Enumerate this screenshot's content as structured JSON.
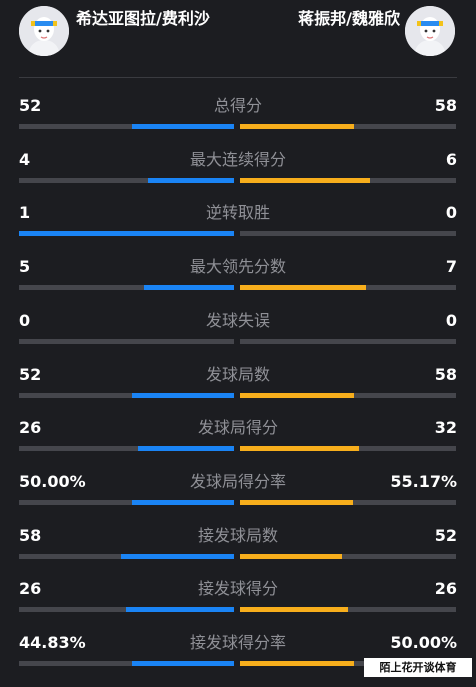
{
  "header": {
    "left_team": "希达亚图拉/费利沙",
    "right_team": "蒋振邦/魏雅欣",
    "left_avatar_icon": "user-avatar-icon",
    "right_avatar_icon": "user-avatar-icon"
  },
  "colors": {
    "left_bar": "#1a84f5",
    "right_bar": "#f7ae1c",
    "track": "#45464c"
  },
  "stats": [
    {
      "label": "总得分",
      "left": "52",
      "right": "58",
      "left_share": 0.473,
      "right_share": 0.527
    },
    {
      "label": "最大连续得分",
      "left": "4",
      "right": "6",
      "left_share": 0.4,
      "right_share": 0.6
    },
    {
      "label": "逆转取胜",
      "left": "1",
      "right": "0",
      "left_share": 1.0,
      "right_share": 0.0
    },
    {
      "label": "最大领先分数",
      "left": "5",
      "right": "7",
      "left_share": 0.417,
      "right_share": 0.583
    },
    {
      "label": "发球失误",
      "left": "0",
      "right": "0",
      "left_share": 0.0,
      "right_share": 0.0
    },
    {
      "label": "发球局数",
      "left": "52",
      "right": "58",
      "left_share": 0.473,
      "right_share": 0.527
    },
    {
      "label": "发球局得分",
      "left": "26",
      "right": "32",
      "left_share": 0.448,
      "right_share": 0.552
    },
    {
      "label": "发球局得分率",
      "left": "50.00%",
      "right": "55.17%",
      "left_share": 0.475,
      "right_share": 0.525
    },
    {
      "label": "接发球局数",
      "left": "58",
      "right": "52",
      "left_share": 0.527,
      "right_share": 0.473
    },
    {
      "label": "接发球得分",
      "left": "26",
      "right": "26",
      "left_share": 0.5,
      "right_share": 0.5
    },
    {
      "label": "接发球得分率",
      "left": "44.83%",
      "right": "50.00%",
      "left_share": 0.473,
      "right_share": 0.527
    }
  ],
  "watermark": "陌上花开谈体育"
}
